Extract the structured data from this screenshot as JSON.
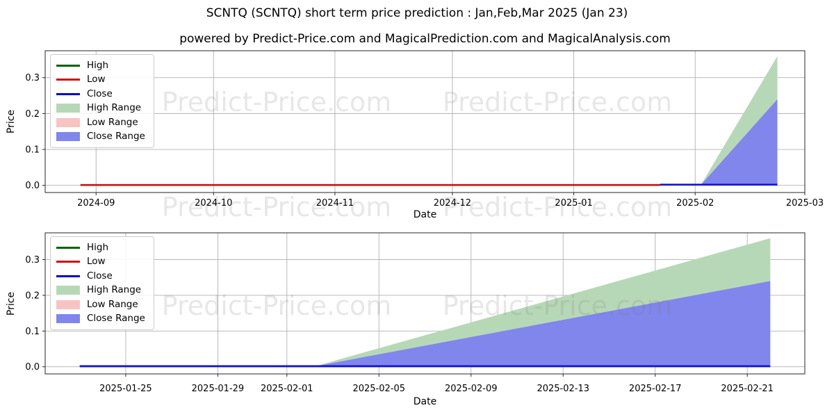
{
  "header": {
    "title": "SCNTQ (SCNTQ) short term price prediction : Jan,Feb,Mar 2025 (Jan 23)",
    "powered_by": "powered by Predict-Price.com and MagicalPrediction.com and MagicalAnalysis.com"
  },
  "watermark": {
    "text": "Predict-Price.com",
    "color": "#787878",
    "opacity": 0.18
  },
  "legend": {
    "items": [
      {
        "label": "High",
        "kind": "line",
        "color": "#006400"
      },
      {
        "label": "Low",
        "kind": "line",
        "color": "#cc1111"
      },
      {
        "label": "Close",
        "kind": "line",
        "color": "#0000cc"
      },
      {
        "label": "High Range",
        "kind": "patch",
        "color": "#b7d8b7"
      },
      {
        "label": "Low Range",
        "kind": "patch",
        "color": "#f8c3c3"
      },
      {
        "label": "Close Range",
        "kind": "patch",
        "color": "#8086ec"
      }
    ]
  },
  "chart_data": [
    {
      "type": "area",
      "title": "SCNTQ full period with prediction",
      "xlabel": "Date",
      "ylabel": "Price",
      "grid": true,
      "legend_position": "upper left",
      "xlim": [
        "2024-08-19",
        "2025-03-01"
      ],
      "ylim": [
        -0.02,
        0.375
      ],
      "x_ticks": [
        {
          "date": "2024-09-01",
          "label": "2024-09"
        },
        {
          "date": "2024-10-01",
          "label": "2024-10"
        },
        {
          "date": "2024-11-01",
          "label": "2024-11"
        },
        {
          "date": "2024-12-01",
          "label": "2024-12"
        },
        {
          "date": "2025-01-01",
          "label": "2025-01"
        },
        {
          "date": "2025-02-01",
          "label": "2025-02"
        },
        {
          "date": "2025-03-01",
          "label": "2025-03"
        }
      ],
      "y_ticks": [
        {
          "v": 0.0,
          "label": "0.0"
        },
        {
          "v": 0.1,
          "label": "0.1"
        },
        {
          "v": 0.2,
          "label": "0.2"
        },
        {
          "v": 0.3,
          "label": "0.3"
        }
      ],
      "series": [
        {
          "name": "High Range",
          "kind": "area",
          "color": "#b7d8b7",
          "upper": [
            [
              "2025-02-02T12:00:00Z",
              0.002
            ],
            [
              "2025-02-22",
              0.36
            ]
          ],
          "lower": [
            [
              "2025-02-02T12:00:00Z",
              0.002
            ],
            [
              "2025-02-22",
              0.24
            ]
          ]
        },
        {
          "name": "Close Range",
          "kind": "area",
          "color": "#8086ec",
          "upper": [
            [
              "2025-02-02T12:00:00Z",
              0.002
            ],
            [
              "2025-02-22",
              0.24
            ]
          ],
          "lower": [
            [
              "2025-02-02T12:00:00Z",
              0.002
            ],
            [
              "2025-02-22",
              0.002
            ]
          ]
        },
        {
          "name": "Low",
          "kind": "line",
          "color": "#cc1111",
          "width": 2.6,
          "points": [
            [
              "2024-08-28",
              0.001
            ],
            [
              "2025-01-23",
              0.001
            ]
          ]
        },
        {
          "name": "Close",
          "kind": "line",
          "color": "#1515cc",
          "width": 2.6,
          "points": [
            [
              "2025-01-23",
              0.002
            ],
            [
              "2025-02-22",
              0.002
            ]
          ]
        }
      ]
    },
    {
      "type": "area",
      "title": "SCNTQ prediction window zoom",
      "xlabel": "Date",
      "ylabel": "Price",
      "grid": true,
      "legend_position": "upper left",
      "xlim": [
        "2025-01-21T12:00:00Z",
        "2025-02-23T12:00:00Z"
      ],
      "ylim": [
        -0.02,
        0.375
      ],
      "x_ticks": [
        {
          "date": "2025-01-25",
          "label": "2025-01-25"
        },
        {
          "date": "2025-01-29",
          "label": "2025-01-29"
        },
        {
          "date": "2025-02-01",
          "label": "2025-02-01"
        },
        {
          "date": "2025-02-05",
          "label": "2025-02-05"
        },
        {
          "date": "2025-02-09",
          "label": "2025-02-09"
        },
        {
          "date": "2025-02-13",
          "label": "2025-02-13"
        },
        {
          "date": "2025-02-17",
          "label": "2025-02-17"
        },
        {
          "date": "2025-02-21",
          "label": "2025-02-21"
        }
      ],
      "y_ticks": [
        {
          "v": 0.0,
          "label": "0.0"
        },
        {
          "v": 0.1,
          "label": "0.1"
        },
        {
          "v": 0.2,
          "label": "0.2"
        },
        {
          "v": 0.3,
          "label": "0.3"
        }
      ],
      "series": [
        {
          "name": "High Range",
          "kind": "area",
          "color": "#b7d8b7",
          "upper": [
            [
              "2025-02-02T06:00:00Z",
              0.002
            ],
            [
              "2025-02-22",
              0.36
            ]
          ],
          "lower": [
            [
              "2025-02-02T06:00:00Z",
              0.002
            ],
            [
              "2025-02-22",
              0.24
            ]
          ]
        },
        {
          "name": "Close Range",
          "kind": "area",
          "color": "#8086ec",
          "upper": [
            [
              "2025-02-02T06:00:00Z",
              0.002
            ],
            [
              "2025-02-22",
              0.24
            ]
          ],
          "lower": [
            [
              "2025-02-02T06:00:00Z",
              0.002
            ],
            [
              "2025-02-22",
              0.002
            ]
          ]
        },
        {
          "name": "Close",
          "kind": "line",
          "color": "#1515cc",
          "width": 2.8,
          "points": [
            [
              "2025-01-23",
              0.0015
            ],
            [
              "2025-02-22",
              0.0015
            ]
          ]
        }
      ]
    }
  ]
}
